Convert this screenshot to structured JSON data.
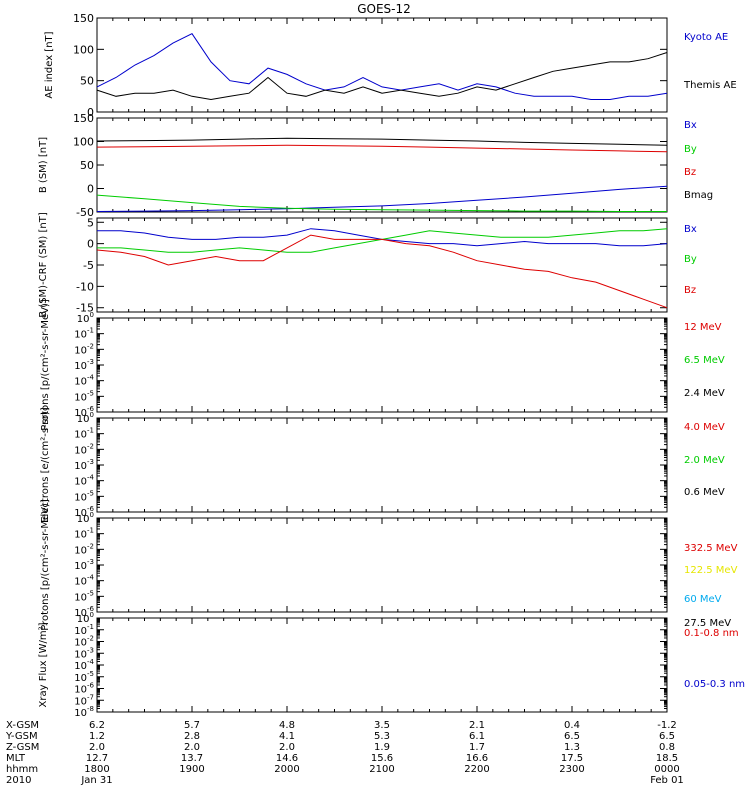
{
  "title": "GOES-12",
  "colors": {
    "black": "#000000",
    "blue": "#0000cc",
    "red": "#dd0000",
    "green": "#00cc00",
    "yellow": "#e6e600",
    "cyan": "#00aaee"
  },
  "time_axis": {
    "ticks": [
      "1800",
      "1900",
      "2000",
      "2100",
      "2200",
      "2300",
      "0000"
    ],
    "date_start": "Jan 31",
    "date_end": "Feb 01",
    "year": "2010",
    "rows": [
      {
        "label": "X-GSM",
        "values": [
          "6.2",
          "5.7",
          "4.8",
          "3.5",
          "2.1",
          "0.4",
          "-1.2"
        ]
      },
      {
        "label": "Y-GSM",
        "values": [
          "1.2",
          "2.8",
          "4.1",
          "5.3",
          "6.1",
          "6.5",
          "6.5"
        ]
      },
      {
        "label": "Z-GSM",
        "values": [
          "2.0",
          "2.0",
          "2.0",
          "1.9",
          "1.7",
          "1.3",
          "0.8"
        ]
      },
      {
        "label": "MLT",
        "values": [
          "12.7",
          "13.7",
          "14.6",
          "15.6",
          "16.6",
          "17.5",
          "18.5"
        ]
      },
      {
        "label": "hhmm",
        "values": [
          "1800",
          "1900",
          "2000",
          "2100",
          "2200",
          "2300",
          "0000"
        ]
      }
    ]
  },
  "chart_data": [
    {
      "type": "line",
      "ylabel": "AE index [nT]",
      "ylim": [
        0,
        150
      ],
      "yticks": [
        "0",
        "50",
        "100",
        "150"
      ],
      "x_hours": [
        18.0,
        18.2,
        18.4,
        18.6,
        18.8,
        19.0,
        19.2,
        19.4,
        19.6,
        19.8,
        20.0,
        20.2,
        20.4,
        20.6,
        20.8,
        21.0,
        21.2,
        21.4,
        21.6,
        21.8,
        22.0,
        22.2,
        22.4,
        22.6,
        22.8,
        23.0,
        23.2,
        23.4,
        23.6,
        23.8,
        24.0
      ],
      "series": [
        {
          "name": "Kyoto AE",
          "color": "blue",
          "values": [
            40,
            55,
            75,
            90,
            110,
            125,
            80,
            50,
            45,
            70,
            60,
            45,
            35,
            40,
            55,
            40,
            35,
            40,
            45,
            35,
            45,
            40,
            30,
            25,
            25,
            25,
            20,
            20,
            25,
            25,
            30
          ]
        },
        {
          "name": "Themis AE",
          "color": "black",
          "values": [
            35,
            25,
            30,
            30,
            35,
            25,
            20,
            25,
            30,
            55,
            30,
            25,
            35,
            30,
            40,
            30,
            35,
            30,
            25,
            30,
            40,
            35,
            45,
            55,
            65,
            70,
            75,
            80,
            80,
            85,
            95
          ]
        }
      ]
    },
    {
      "type": "line",
      "ylabel": "B (SM) [nT]",
      "ylim": [
        -50,
        150
      ],
      "yticks": [
        "-50",
        "0",
        "50",
        "100",
        "150"
      ],
      "x_hours": [
        18.0,
        18.5,
        19.0,
        19.5,
        20.0,
        20.5,
        21.0,
        21.5,
        22.0,
        22.5,
        23.0,
        23.5,
        24.0
      ],
      "series": [
        {
          "name": "Bx",
          "color": "blue",
          "values": [
            -49,
            -48,
            -47,
            -45,
            -43,
            -40,
            -37,
            -32,
            -25,
            -18,
            -10,
            -2,
            5
          ]
        },
        {
          "name": "By",
          "color": "green",
          "values": [
            -14,
            -22,
            -30,
            -38,
            -42,
            -44,
            -45,
            -46,
            -47,
            -48,
            -48,
            -49,
            -49
          ]
        },
        {
          "name": "Bz",
          "color": "red",
          "values": [
            88,
            89,
            90,
            91,
            92,
            91,
            90,
            88,
            86,
            84,
            82,
            80,
            78
          ]
        },
        {
          "name": "Bmag",
          "color": "black",
          "values": [
            101,
            102,
            103,
            105,
            107,
            106,
            105,
            103,
            101,
            98,
            96,
            94,
            92
          ]
        }
      ]
    },
    {
      "type": "line",
      "ylabel": "B (SM)-CRF (SM) [nT]",
      "ylim": [
        -16,
        6
      ],
      "yticks": [
        "-15",
        "-10",
        "-5",
        "0",
        "5"
      ],
      "x_hours": [
        18.0,
        18.25,
        18.5,
        18.75,
        19.0,
        19.25,
        19.5,
        19.75,
        20.0,
        20.25,
        20.5,
        20.75,
        21.0,
        21.25,
        21.5,
        21.75,
        22.0,
        22.25,
        22.5,
        22.75,
        23.0,
        23.25,
        23.5,
        23.75,
        24.0
      ],
      "series": [
        {
          "name": "Bx",
          "color": "blue",
          "values": [
            3,
            3,
            2.5,
            1.5,
            1,
            1,
            1.5,
            1.5,
            2,
            3.5,
            3,
            2,
            1,
            0.5,
            0,
            0,
            -0.5,
            0,
            0.5,
            0,
            0,
            0,
            -0.5,
            -0.5,
            0
          ]
        },
        {
          "name": "By",
          "color": "green",
          "values": [
            -1,
            -1,
            -1.5,
            -2,
            -2,
            -1.5,
            -1,
            -1.5,
            -2,
            -2,
            -1,
            0,
            1,
            2,
            3,
            2.5,
            2,
            1.5,
            1.5,
            1.5,
            2,
            2.5,
            3,
            3,
            3.5
          ]
        },
        {
          "name": "Bz",
          "color": "red",
          "values": [
            -1.5,
            -2,
            -3,
            -5,
            -4,
            -3,
            -4,
            -4,
            -1,
            2,
            1,
            1,
            1,
            0,
            -0.5,
            -2,
            -4,
            -5,
            -6,
            -6.5,
            -8,
            -9,
            -11,
            -13,
            -15
          ]
        }
      ]
    },
    {
      "type": "line",
      "ylabel": "Protons [p/(cm²-s-sr-MeV)]",
      "ylim": [
        -6,
        0
      ],
      "yscale": "log",
      "ytick_base": "10",
      "ytick_exps": [
        "0",
        "-1",
        "-2",
        "-3",
        "-4",
        "-5",
        "-6"
      ],
      "series": [
        {
          "name": "12 MeV",
          "color": "red",
          "values": []
        },
        {
          "name": "6.5 MeV",
          "color": "green",
          "values": []
        },
        {
          "name": "2.4 MeV",
          "color": "black",
          "values": []
        }
      ]
    },
    {
      "type": "line",
      "ylabel": "Electrons [e/(cm²-s-sr)]",
      "ylim": [
        -6,
        0
      ],
      "yscale": "log",
      "ytick_base": "10",
      "ytick_exps": [
        "0",
        "-1",
        "-2",
        "-3",
        "-4",
        "-5",
        "-6"
      ],
      "series": [
        {
          "name": "4.0 MeV",
          "color": "red",
          "values": []
        },
        {
          "name": "2.0 MeV",
          "color": "green",
          "values": []
        },
        {
          "name": "0.6 MeV",
          "color": "black",
          "values": []
        }
      ]
    },
    {
      "type": "line",
      "ylabel": "Protons [p/(cm²-s-sr-MeV)]",
      "ylim": [
        -6,
        0
      ],
      "yscale": "log",
      "ytick_base": "10",
      "ytick_exps": [
        "0",
        "-1",
        "-2",
        "-3",
        "-4",
        "-5",
        "-6"
      ],
      "series": [
        {
          "name": "332.5 MeV",
          "color": "red",
          "values": []
        },
        {
          "name": "122.5 MeV",
          "color": "yellow",
          "values": []
        },
        {
          "name": "60 MeV",
          "color": "cyan",
          "values": []
        },
        {
          "name": "27.5 MeV",
          "color": "black",
          "values": []
        }
      ]
    },
    {
      "type": "line",
      "ylabel": "Xray Flux [W/m²]",
      "ylim": [
        -8,
        0
      ],
      "yscale": "log",
      "ytick_base": "10",
      "ytick_exps": [
        "0",
        "-1",
        "-2",
        "-3",
        "-4",
        "-5",
        "-6",
        "-7",
        "-8"
      ],
      "series": [
        {
          "name": "0.1-0.8 nm",
          "color": "red",
          "values": []
        },
        {
          "name": "0.05-0.3 nm",
          "color": "blue",
          "values": []
        }
      ]
    }
  ]
}
